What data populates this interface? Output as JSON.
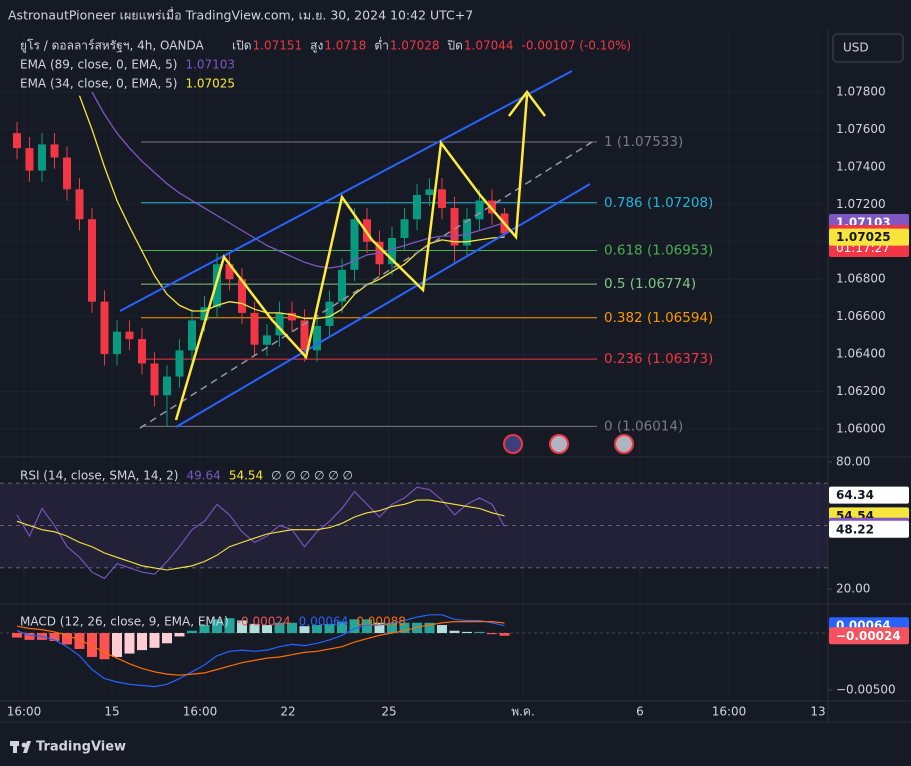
{
  "header": {
    "publisher": "AstronautPioneer เผยแพร่เมื่อ TradingView.com, เม.ย. 30, 2024 10:42 UTC+7"
  },
  "brand": "TradingView",
  "chart_data": [
    {
      "type": "candlestick",
      "title": "ยูโร / ดอลลาร์สหรัฐฯ, 4h, OANDA",
      "currency": "USD",
      "ohlc_labels": {
        "open": "เปิด",
        "high": "สูง",
        "low": "ต่ำ",
        "close": "ปิด"
      },
      "change": "-0.00107 (-0.10%)",
      "up_color": "#089981",
      "down_color": "#f23645",
      "candles": {
        "open": [
          1.0758,
          1.075,
          1.0738,
          1.0752,
          1.0745,
          1.0728,
          1.0712,
          1.0668,
          1.064,
          1.0652,
          1.0648,
          1.0635,
          1.0618,
          1.0628,
          1.0642,
          1.0658,
          1.0665,
          1.0688,
          1.068,
          1.0662,
          1.0645,
          1.065,
          1.0662,
          1.0658,
          1.0642,
          1.0655,
          1.0668,
          1.0685,
          1.0712,
          1.07,
          1.0688,
          1.0702,
          1.0712,
          1.0725,
          1.0728,
          1.0718,
          1.0698,
          1.0712,
          1.0722,
          1.07151
        ],
        "high": [
          1.0764,
          1.0756,
          1.0758,
          1.0758,
          1.0751,
          1.0734,
          1.0718,
          1.0674,
          1.0658,
          1.0658,
          1.0654,
          1.0641,
          1.0634,
          1.0648,
          1.0664,
          1.0671,
          1.0694,
          1.0694,
          1.0686,
          1.0668,
          1.0656,
          1.0668,
          1.0668,
          1.0664,
          1.0661,
          1.0674,
          1.0691,
          1.0718,
          1.0718,
          1.0706,
          1.0708,
          1.0718,
          1.0731,
          1.0734,
          1.0734,
          1.0724,
          1.0718,
          1.0728,
          1.0728,
          1.0718
        ],
        "low": [
          1.0744,
          1.0732,
          1.0732,
          1.0739,
          1.0722,
          1.0706,
          1.0662,
          1.0634,
          1.0634,
          1.0642,
          1.0629,
          1.0612,
          1.0601,
          1.0622,
          1.0636,
          1.0652,
          1.0659,
          1.0674,
          1.0656,
          1.0639,
          1.0639,
          1.0644,
          1.0652,
          1.0636,
          1.0636,
          1.0649,
          1.0662,
          1.0679,
          1.0694,
          1.0682,
          1.0682,
          1.0696,
          1.0706,
          1.0719,
          1.0712,
          1.0688,
          1.0692,
          1.0706,
          1.0709,
          1.07028
        ],
        "close": [
          1.075,
          1.0738,
          1.0752,
          1.0745,
          1.0728,
          1.0712,
          1.0668,
          1.064,
          1.0652,
          1.0648,
          1.0635,
          1.0618,
          1.0628,
          1.0642,
          1.0658,
          1.0665,
          1.0688,
          1.068,
          1.0662,
          1.0645,
          1.065,
          1.0662,
          1.0658,
          1.0642,
          1.0655,
          1.0668,
          1.0685,
          1.0712,
          1.07,
          1.0688,
          1.0702,
          1.0712,
          1.0725,
          1.0728,
          1.0718,
          1.0698,
          1.0712,
          1.0722,
          1.07151,
          1.07044
        ]
      },
      "series": [
        {
          "name": "EMA (89, close, 0, EMA, 5)",
          "color": "#7e57c2",
          "values": [
            null,
            null,
            null,
            null,
            null,
            null,
            1.078,
            1.0768,
            1.0758,
            1.075,
            1.0743,
            1.0737,
            1.0731,
            1.0726,
            1.0722,
            1.0718,
            1.0714,
            1.071,
            1.0706,
            1.0702,
            1.0698,
            1.0695,
            1.0692,
            1.0689,
            1.0687,
            1.0686,
            1.0687,
            1.069,
            1.0693,
            1.0694,
            1.0696,
            1.0698,
            1.07,
            1.0702,
            1.0703,
            1.0703,
            1.0704,
            1.0706,
            1.0708,
            1.07103
          ]
        },
        {
          "name": "EMA (34, close, 0, EMA, 5)",
          "color": "#f7e53b",
          "values": [
            null,
            null,
            null,
            null,
            null,
            1.0778,
            1.076,
            1.074,
            1.0722,
            1.0708,
            1.0695,
            1.0682,
            1.0672,
            1.0666,
            1.0663,
            1.0663,
            1.0666,
            1.0668,
            1.0667,
            1.0664,
            1.0662,
            1.0662,
            1.0661,
            1.0659,
            1.0659,
            1.066,
            1.0664,
            1.0672,
            1.0677,
            1.068,
            1.0684,
            1.0688,
            1.0694,
            1.0699,
            1.0701,
            1.07,
            1.07,
            1.0701,
            1.0702,
            1.07025
          ]
        }
      ],
      "fib_levels": [
        {
          "label": "1 (1.07533)",
          "value": 1.07533,
          "color": "#787b86"
        },
        {
          "label": "0.786 (1.07208)",
          "value": 1.07208,
          "color": "#22b5d8"
        },
        {
          "label": "0.618 (1.06953)",
          "value": 1.06953,
          "color": "#4caf50"
        },
        {
          "label": "0.5 (1.06774)",
          "value": 1.06774,
          "color": "#81c784"
        },
        {
          "label": "0.382 (1.06594)",
          "value": 1.06594,
          "color": "#ff9800"
        },
        {
          "label": "0.236 (1.06373)",
          "value": 1.06373,
          "color": "#f23645"
        },
        {
          "label": "0 (1.06014)",
          "value": 1.06014,
          "color": "#787b86"
        }
      ],
      "axis_badges": [
        {
          "value": 1.07103,
          "color": "#7e57c2"
        },
        {
          "value": 1.07044,
          "color": "#f23645",
          "sub": "01:17:27"
        },
        {
          "value": 1.07025,
          "color": "#f7e53b"
        }
      ],
      "ylim": [
        1.05861,
        1.08131
      ],
      "yticks": [
        {
          "value": 1.06,
          "label": "1.06000"
        },
        {
          "value": 1.062,
          "label": "1.06200"
        },
        {
          "value": 1.064,
          "label": "1.06400"
        },
        {
          "value": 1.066,
          "label": "1.06600"
        },
        {
          "value": 1.068,
          "label": "1.06800"
        },
        {
          "value": 1.07,
          "label": "1.07000"
        },
        {
          "value": 1.072,
          "label": "1.07200"
        },
        {
          "value": 1.074,
          "label": "1.07400"
        },
        {
          "value": 1.076,
          "label": "1.07600"
        },
        {
          "value": 1.078,
          "label": "1.07800"
        }
      ],
      "xlim": [
        -1.36,
        64.88
      ],
      "xticks": [
        {
          "value": 0.56,
          "label": "16:00"
        },
        {
          "value": 7.6,
          "label": "15"
        },
        {
          "value": 14.64,
          "label": "16:00"
        },
        {
          "value": 21.68,
          "label": "22"
        },
        {
          "value": 29.76,
          "label": "25"
        },
        {
          "value": 40.48,
          "label": "พ.ค."
        },
        {
          "value": 49.84,
          "label": "6"
        },
        {
          "value": 56.96,
          "label": "16:00"
        },
        {
          "value": 64.08,
          "label": "13"
        }
      ],
      "grid": true
    },
    {
      "type": "rsi",
      "title": "RSI (14, close, SMA, 14, 2)",
      "legend_extra": "∅ ∅ ∅ ∅ ∅ ∅",
      "levels": [
        70,
        50,
        30
      ],
      "series": [
        {
          "color": "#7e57c2",
          "values": [
            55,
            45,
            58,
            50,
            40,
            35,
            28,
            25,
            32,
            30,
            28,
            27,
            33,
            40,
            48,
            52,
            60,
            55,
            47,
            42,
            45,
            50,
            48,
            40,
            47,
            52,
            58,
            66,
            60,
            54,
            60,
            63,
            68,
            67,
            62,
            55,
            60,
            63,
            60,
            49.64
          ]
        },
        {
          "color": "#f7e53b",
          "values": [
            52,
            50,
            48,
            47,
            45,
            42,
            40,
            37,
            35,
            33,
            31,
            30,
            29,
            30,
            31,
            33,
            36,
            40,
            42,
            44,
            46,
            47,
            48,
            48,
            48,
            49,
            51,
            54,
            56,
            57,
            59,
            60,
            62,
            62,
            61,
            60,
            59,
            58,
            56,
            54.54
          ]
        }
      ],
      "axis_badges": [
        {
          "value": 64.34,
          "color": "#ffffff"
        },
        {
          "value": 54.54,
          "color": "#f7e53b"
        },
        {
          "value": 49.64,
          "color": "#7e57c2"
        },
        {
          "value": 48.22,
          "color": "#ffffff"
        }
      ],
      "ylim": [
        13.9,
        80.9
      ],
      "yticks": [
        {
          "value": 80,
          "label": "80.00"
        },
        {
          "value": 20,
          "label": "20.00"
        }
      ]
    },
    {
      "type": "macd",
      "title": "MACD (12, 26, close, 9, EMA, EMA)",
      "histogram": [
        -0.0004,
        -0.0006,
        -0.0006,
        -0.0007,
        -0.001,
        -0.0014,
        -0.0021,
        -0.0023,
        -0.0021,
        -0.0018,
        -0.0015,
        -0.0013,
        -0.0009,
        -0.0003,
        0.0002,
        0.0007,
        0.0012,
        0.0013,
        0.0011,
        0.0008,
        0.0007,
        0.0009,
        0.0009,
        0.0006,
        0.0007,
        0.0008,
        0.001,
        0.0012,
        0.0012,
        0.0009,
        0.0009,
        0.0009,
        0.0009,
        0.0009,
        0.0007,
        0.0002,
        0.0001,
        0.0001,
        -0.0001,
        -0.00024
      ],
      "series": [
        {
          "color": "#2962ff",
          "values": [
            0.0002,
            -0.0002,
            -0.0003,
            -0.0006,
            -0.0012,
            -0.002,
            -0.0032,
            -0.004,
            -0.0043,
            -0.0045,
            -0.0046,
            -0.0047,
            -0.0045,
            -0.004,
            -0.0034,
            -0.0028,
            -0.002,
            -0.0016,
            -0.0015,
            -0.0016,
            -0.0015,
            -0.0012,
            -0.001,
            -0.0011,
            -0.0009,
            -0.0006,
            -0.0002,
            0.0004,
            0.0007,
            0.0007,
            0.0009,
            0.0011,
            0.0014,
            0.0016,
            0.0016,
            0.0012,
            0.0011,
            0.0011,
            0.0009,
            0.00064
          ]
        },
        {
          "color": "#ff6d00",
          "values": [
            0.0006,
            0.0004,
            0.0003,
            0.0001,
            -0.0002,
            -0.0006,
            -0.0011,
            -0.0017,
            -0.0022,
            -0.0027,
            -0.0031,
            -0.0034,
            -0.0036,
            -0.0037,
            -0.0036,
            -0.0035,
            -0.0032,
            -0.0029,
            -0.0026,
            -0.0024,
            -0.0022,
            -0.0021,
            -0.0019,
            -0.0017,
            -0.0016,
            -0.0014,
            -0.0012,
            -0.0008,
            -0.0005,
            -0.0002,
            0.0,
            0.0002,
            0.0005,
            0.0007,
            0.0009,
            0.001,
            0.001,
            0.001,
            0.001,
            0.00088
          ]
        }
      ],
      "axis_badges": [
        {
          "value": 0.00064,
          "color": "#2962ff"
        },
        {
          "value": -0.00024,
          "label": "−0.00024",
          "color": "#f7525f"
        }
      ],
      "ylim": [
        -0.00605,
        0.00237
      ],
      "yticks": [
        {
          "value": -0.005,
          "label": "−0.00500"
        }
      ]
    }
  ]
}
